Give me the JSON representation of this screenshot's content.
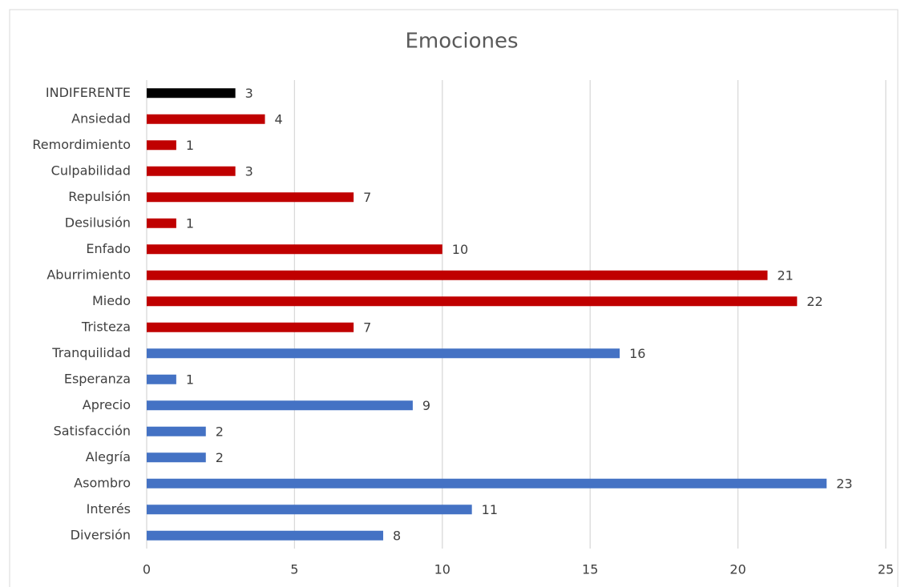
{
  "chart_data": {
    "type": "bar",
    "orientation": "horizontal",
    "title": "Emociones",
    "categories": [
      "INDIFERENTE",
      "Ansiedad",
      "Remordimiento",
      "Culpabilidad",
      "Repulsión",
      "Desilusión",
      "Enfado",
      "Aburrimiento",
      "Miedo",
      "Tristeza",
      "Tranquilidad",
      "Esperanza",
      "Aprecio",
      "Satisfacción",
      "Alegría",
      "Asombro",
      "Interés",
      "Diversión"
    ],
    "values": [
      3,
      4,
      1,
      3,
      7,
      1,
      10,
      21,
      22,
      7,
      16,
      1,
      9,
      2,
      2,
      23,
      11,
      8
    ],
    "colors": [
      "#000000",
      "#c00000",
      "#c00000",
      "#c00000",
      "#c00000",
      "#c00000",
      "#c00000",
      "#c00000",
      "#c00000",
      "#c00000",
      "#4472c4",
      "#4472c4",
      "#4472c4",
      "#4472c4",
      "#4472c4",
      "#4472c4",
      "#4472c4",
      "#4472c4"
    ],
    "xlim": [
      0,
      25
    ],
    "xticks": [
      0,
      5,
      10,
      15,
      20,
      25
    ],
    "grid": true,
    "data_labels": true
  }
}
